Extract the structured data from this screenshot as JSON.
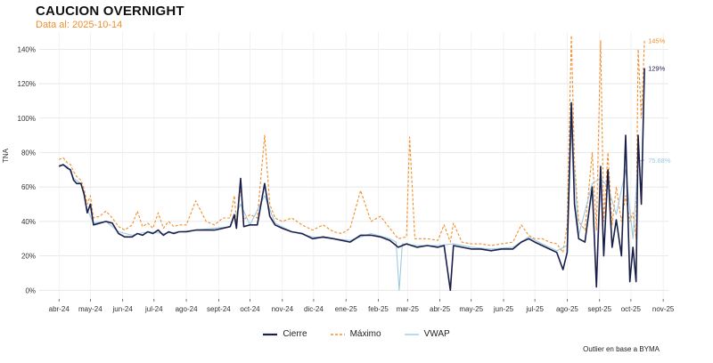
{
  "chart_data": {
    "type": "line",
    "title": "CAUCION OVERNIGHT",
    "subtitle": "Data al: 2025-10-14",
    "ylabel": "TNA",
    "xlabel": "",
    "ylim": [
      -5,
      150
    ],
    "y_ticks": [
      0,
      20,
      40,
      60,
      80,
      100,
      120,
      140
    ],
    "y_tick_labels": [
      "0%",
      "20%",
      "40%",
      "60%",
      "80%",
      "100%",
      "120%",
      "140%"
    ],
    "x_ticks": [
      "abr-24",
      "may-24",
      "jun-24",
      "jul-24",
      "ago-24",
      "sept-24",
      "oct-24",
      "nov-24",
      "dic-24",
      "ene-25",
      "feb-25",
      "mar-25",
      "abr-25",
      "may-25",
      "jun-25",
      "jul-25",
      "ago-25",
      "sept-25",
      "oct-25",
      "nov-25"
    ],
    "grid": true,
    "legend_position": "bottom",
    "caption": "Outlier en base a BYMA",
    "series": [
      {
        "name": "Cierre",
        "color": "#1a1f4a",
        "style": "solid",
        "end_label": "129%",
        "points": [
          [
            "2024-04-01",
            72
          ],
          [
            "2024-04-05",
            73
          ],
          [
            "2024-04-09",
            71
          ],
          [
            "2024-04-12",
            70
          ],
          [
            "2024-04-15",
            64
          ],
          [
            "2024-04-18",
            62
          ],
          [
            "2024-04-22",
            62
          ],
          [
            "2024-04-25",
            56
          ],
          [
            "2024-04-28",
            45
          ],
          [
            "2024-05-01",
            50
          ],
          [
            "2024-05-04",
            38
          ],
          [
            "2024-05-10",
            39
          ],
          [
            "2024-05-16",
            40
          ],
          [
            "2024-05-22",
            39
          ],
          [
            "2024-05-28",
            33
          ],
          [
            "2024-06-03",
            31
          ],
          [
            "2024-06-10",
            31
          ],
          [
            "2024-06-15",
            33
          ],
          [
            "2024-06-20",
            32
          ],
          [
            "2024-06-25",
            34
          ],
          [
            "2024-06-30",
            33
          ],
          [
            "2024-07-05",
            35
          ],
          [
            "2024-07-10",
            32
          ],
          [
            "2024-07-15",
            34
          ],
          [
            "2024-07-20",
            33
          ],
          [
            "2024-07-25",
            34
          ],
          [
            "2024-08-01",
            34
          ],
          [
            "2024-08-10",
            35
          ],
          [
            "2024-08-20",
            35
          ],
          [
            "2024-08-28",
            35
          ],
          [
            "2024-09-05",
            36
          ],
          [
            "2024-09-12",
            37
          ],
          [
            "2024-09-16",
            44
          ],
          [
            "2024-09-18",
            36
          ],
          [
            "2024-09-22",
            65
          ],
          [
            "2024-09-25",
            37
          ],
          [
            "2024-10-01",
            38
          ],
          [
            "2024-10-08",
            38
          ],
          [
            "2024-10-15",
            62
          ],
          [
            "2024-10-20",
            43
          ],
          [
            "2024-10-25",
            38
          ],
          [
            "2024-11-01",
            36
          ],
          [
            "2024-11-10",
            34
          ],
          [
            "2024-11-20",
            33
          ],
          [
            "2024-11-30",
            30
          ],
          [
            "2024-12-10",
            31
          ],
          [
            "2024-12-20",
            30
          ],
          [
            "2024-12-28",
            29
          ],
          [
            "2025-01-05",
            28
          ],
          [
            "2025-01-15",
            32
          ],
          [
            "2025-01-25",
            32
          ],
          [
            "2025-02-03",
            31
          ],
          [
            "2025-02-12",
            29
          ],
          [
            "2025-02-20",
            25
          ],
          [
            "2025-02-28",
            27
          ],
          [
            "2025-03-10",
            25
          ],
          [
            "2025-03-20",
            26
          ],
          [
            "2025-03-30",
            25
          ],
          [
            "2025-04-05",
            26
          ],
          [
            "2025-04-11",
            0
          ],
          [
            "2025-04-14",
            26
          ],
          [
            "2025-04-22",
            25
          ],
          [
            "2025-05-01",
            24
          ],
          [
            "2025-05-10",
            24
          ],
          [
            "2025-05-20",
            23
          ],
          [
            "2025-05-30",
            24
          ],
          [
            "2025-06-10",
            24
          ],
          [
            "2025-06-18",
            28
          ],
          [
            "2025-06-25",
            30
          ],
          [
            "2025-07-01",
            28
          ],
          [
            "2025-07-08",
            26
          ],
          [
            "2025-07-15",
            24
          ],
          [
            "2025-07-22",
            22
          ],
          [
            "2025-07-28",
            12
          ],
          [
            "2025-08-01",
            22
          ],
          [
            "2025-08-05",
            109
          ],
          [
            "2025-08-08",
            50
          ],
          [
            "2025-08-12",
            30
          ],
          [
            "2025-08-18",
            28
          ],
          [
            "2025-08-25",
            60
          ],
          [
            "2025-08-29",
            2
          ],
          [
            "2025-09-02",
            72
          ],
          [
            "2025-09-05",
            20
          ],
          [
            "2025-09-09",
            70
          ],
          [
            "2025-09-13",
            25
          ],
          [
            "2025-09-17",
            41
          ],
          [
            "2025-09-22",
            20
          ],
          [
            "2025-09-26",
            90
          ],
          [
            "2025-09-30",
            5
          ],
          [
            "2025-10-03",
            25
          ],
          [
            "2025-10-06",
            5
          ],
          [
            "2025-10-08",
            90
          ],
          [
            "2025-10-11",
            50
          ],
          [
            "2025-10-14",
            129
          ]
        ]
      },
      {
        "name": "Máximo",
        "color": "#f28e2b",
        "style": "dashed",
        "end_label": "145%",
        "points": [
          [
            "2024-04-01",
            76
          ],
          [
            "2024-04-05",
            77
          ],
          [
            "2024-04-09",
            74
          ],
          [
            "2024-04-12",
            73
          ],
          [
            "2024-04-15",
            69
          ],
          [
            "2024-04-18",
            66
          ],
          [
            "2024-04-22",
            64
          ],
          [
            "2024-04-25",
            59
          ],
          [
            "2024-04-28",
            50
          ],
          [
            "2024-05-01",
            55
          ],
          [
            "2024-05-04",
            42
          ],
          [
            "2024-05-10",
            43
          ],
          [
            "2024-05-16",
            46
          ],
          [
            "2024-05-22",
            42
          ],
          [
            "2024-05-28",
            37
          ],
          [
            "2024-06-03",
            35
          ],
          [
            "2024-06-10",
            38
          ],
          [
            "2024-06-15",
            46
          ],
          [
            "2024-06-20",
            37
          ],
          [
            "2024-06-25",
            39
          ],
          [
            "2024-06-30",
            36
          ],
          [
            "2024-07-05",
            45
          ],
          [
            "2024-07-10",
            36
          ],
          [
            "2024-07-15",
            40
          ],
          [
            "2024-07-20",
            37
          ],
          [
            "2024-07-25",
            38
          ],
          [
            "2024-08-01",
            38
          ],
          [
            "2024-08-10",
            52
          ],
          [
            "2024-08-20",
            40
          ],
          [
            "2024-08-28",
            38
          ],
          [
            "2024-09-05",
            42
          ],
          [
            "2024-09-12",
            42
          ],
          [
            "2024-09-16",
            55
          ],
          [
            "2024-09-18",
            40
          ],
          [
            "2024-09-22",
            60
          ],
          [
            "2024-09-25",
            41
          ],
          [
            "2024-10-01",
            44
          ],
          [
            "2024-10-08",
            42
          ],
          [
            "2024-10-15",
            90
          ],
          [
            "2024-10-20",
            50
          ],
          [
            "2024-10-25",
            42
          ],
          [
            "2024-11-01",
            40
          ],
          [
            "2024-11-10",
            42
          ],
          [
            "2024-11-20",
            38
          ],
          [
            "2024-11-30",
            35
          ],
          [
            "2024-12-10",
            38
          ],
          [
            "2024-12-20",
            34
          ],
          [
            "2024-12-28",
            33
          ],
          [
            "2025-01-05",
            36
          ],
          [
            "2025-01-15",
            58
          ],
          [
            "2025-01-25",
            40
          ],
          [
            "2025-02-03",
            43
          ],
          [
            "2025-02-12",
            36
          ],
          [
            "2025-02-20",
            30
          ],
          [
            "2025-02-28",
            31
          ],
          [
            "2025-03-03",
            89
          ],
          [
            "2025-03-08",
            30
          ],
          [
            "2025-03-20",
            30
          ],
          [
            "2025-03-30",
            29
          ],
          [
            "2025-04-05",
            38
          ],
          [
            "2025-04-11",
            28
          ],
          [
            "2025-04-14",
            39
          ],
          [
            "2025-04-22",
            28
          ],
          [
            "2025-05-01",
            27
          ],
          [
            "2025-05-10",
            27
          ],
          [
            "2025-05-20",
            26
          ],
          [
            "2025-05-30",
            27
          ],
          [
            "2025-06-10",
            28
          ],
          [
            "2025-06-18",
            38
          ],
          [
            "2025-06-25",
            32
          ],
          [
            "2025-07-01",
            30
          ],
          [
            "2025-07-08",
            30
          ],
          [
            "2025-07-15",
            28
          ],
          [
            "2025-07-22",
            27
          ],
          [
            "2025-07-28",
            22
          ],
          [
            "2025-08-01",
            38
          ],
          [
            "2025-08-05",
            148
          ],
          [
            "2025-08-08",
            75
          ],
          [
            "2025-08-12",
            40
          ],
          [
            "2025-08-18",
            35
          ],
          [
            "2025-08-25",
            80
          ],
          [
            "2025-08-29",
            35
          ],
          [
            "2025-09-02",
            145
          ],
          [
            "2025-09-05",
            40
          ],
          [
            "2025-09-09",
            80
          ],
          [
            "2025-09-13",
            38
          ],
          [
            "2025-09-17",
            60
          ],
          [
            "2025-09-22",
            40
          ],
          [
            "2025-09-26",
            55
          ],
          [
            "2025-09-30",
            40
          ],
          [
            "2025-10-03",
            45
          ],
          [
            "2025-10-06",
            30
          ],
          [
            "2025-10-08",
            140
          ],
          [
            "2025-10-11",
            100
          ],
          [
            "2025-10-14",
            145
          ]
        ]
      },
      {
        "name": "VWAP",
        "color": "#9ecae1",
        "style": "solid",
        "end_label": "75.68%",
        "points": [
          [
            "2024-04-01",
            73
          ],
          [
            "2024-04-09",
            72
          ],
          [
            "2024-04-15",
            65
          ],
          [
            "2024-04-22",
            62
          ],
          [
            "2024-04-28",
            47
          ],
          [
            "2024-05-04",
            39
          ],
          [
            "2024-05-16",
            40
          ],
          [
            "2024-05-28",
            34
          ],
          [
            "2024-06-10",
            32
          ],
          [
            "2024-06-25",
            34
          ],
          [
            "2024-07-10",
            33
          ],
          [
            "2024-07-25",
            34
          ],
          [
            "2024-08-10",
            35
          ],
          [
            "2024-08-28",
            36
          ],
          [
            "2024-09-12",
            37
          ],
          [
            "2024-09-22",
            50
          ],
          [
            "2024-10-01",
            38
          ],
          [
            "2024-10-15",
            55
          ],
          [
            "2024-10-25",
            39
          ],
          [
            "2024-11-10",
            34
          ],
          [
            "2024-11-30",
            31
          ],
          [
            "2024-12-20",
            30
          ],
          [
            "2025-01-05",
            29
          ],
          [
            "2025-01-25",
            33
          ],
          [
            "2025-02-12",
            30
          ],
          [
            "2025-02-18",
            28
          ],
          [
            "2025-02-21",
            0
          ],
          [
            "2025-02-24",
            27
          ],
          [
            "2025-03-10",
            26
          ],
          [
            "2025-03-30",
            26
          ],
          [
            "2025-04-14",
            27
          ],
          [
            "2025-05-01",
            25
          ],
          [
            "2025-05-20",
            24
          ],
          [
            "2025-06-10",
            25
          ],
          [
            "2025-06-25",
            31
          ],
          [
            "2025-07-08",
            27
          ],
          [
            "2025-07-22",
            23
          ],
          [
            "2025-08-01",
            26
          ],
          [
            "2025-08-05",
            95
          ],
          [
            "2025-08-12",
            32
          ],
          [
            "2025-08-25",
            62
          ],
          [
            "2025-09-02",
            65
          ],
          [
            "2025-09-09",
            60
          ],
          [
            "2025-09-17",
            44
          ],
          [
            "2025-09-26",
            70
          ],
          [
            "2025-10-03",
            30
          ],
          [
            "2025-10-08",
            75
          ],
          [
            "2025-10-14",
            75.68
          ]
        ]
      }
    ]
  }
}
